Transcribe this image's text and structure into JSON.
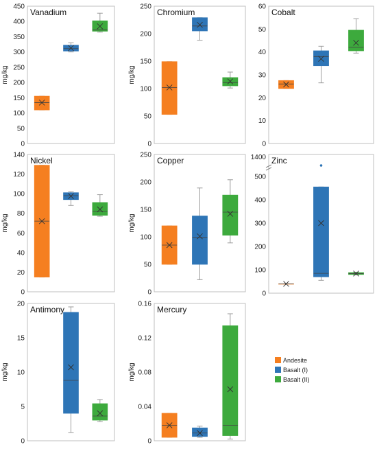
{
  "legend": [
    {
      "name": "Andesite",
      "color": "#F57F20"
    },
    {
      "name": "Basalt (I)",
      "color": "#2E75B6"
    },
    {
      "name": "Basalt (II)",
      "color": "#3DAA3D"
    }
  ],
  "chart_data": [
    {
      "type": "box",
      "title": "Vanadium",
      "ylabel": "mg/kg",
      "ylim": [
        0,
        450
      ],
      "yticks": [
        0,
        50,
        100,
        150,
        200,
        250,
        300,
        350,
        400,
        450
      ],
      "series": [
        {
          "name": "Andesite",
          "min": 110,
          "q1": 110,
          "median": 134,
          "q3": 155,
          "max": 155,
          "mean": 134
        },
        {
          "name": "Basalt (I)",
          "min": 300,
          "q1": 303,
          "median": 311,
          "q3": 322,
          "max": 330,
          "mean": 313
        },
        {
          "name": "Basalt (II)",
          "min": 365,
          "q1": 368,
          "median": 372,
          "q3": 402,
          "max": 427,
          "mean": 384
        }
      ]
    },
    {
      "type": "box",
      "title": "Chromium",
      "ylabel": "mg/kg",
      "ylim": [
        0,
        250
      ],
      "yticks": [
        0,
        50,
        100,
        150,
        200,
        250
      ],
      "series": [
        {
          "name": "Andesite",
          "min": 53,
          "q1": 53,
          "median": 102,
          "q3": 149,
          "max": 149,
          "mean": 102
        },
        {
          "name": "Basalt (I)",
          "min": 188,
          "q1": 205,
          "median": 214,
          "q3": 229,
          "max": 229,
          "mean": 216
        },
        {
          "name": "Basalt (II)",
          "min": 101,
          "q1": 105,
          "median": 111,
          "q3": 120,
          "max": 130,
          "mean": 113
        }
      ]
    },
    {
      "type": "box",
      "title": "Cobalt",
      "ylabel": "",
      "ylim": [
        0,
        60
      ],
      "yticks": [
        0,
        10,
        20,
        30,
        40,
        50,
        60
      ],
      "series": [
        {
          "name": "Andesite",
          "min": 24,
          "q1": 24,
          "median": 26,
          "q3": 27.5,
          "max": 27.5,
          "mean": 25.8
        },
        {
          "name": "Basalt (I)",
          "min": 26.5,
          "q1": 34,
          "median": 38,
          "q3": 40.5,
          "max": 42.5,
          "mean": 37
        },
        {
          "name": "Basalt (II)",
          "min": 39.5,
          "q1": 40.5,
          "median": 42,
          "q3": 49.5,
          "max": 54.5,
          "mean": 44
        }
      ]
    },
    {
      "type": "box",
      "title": "Nickel",
      "ylabel": "mg/kg",
      "ylim": [
        0,
        140
      ],
      "yticks": [
        0,
        20,
        40,
        60,
        80,
        100,
        120,
        140
      ],
      "series": [
        {
          "name": "Andesite",
          "min": 15,
          "q1": 15,
          "median": 72,
          "q3": 129,
          "max": 129,
          "mean": 72
        },
        {
          "name": "Basalt (I)",
          "min": 88,
          "q1": 94,
          "median": 98,
          "q3": 101,
          "max": 102,
          "mean": 97.5
        },
        {
          "name": "Basalt (II)",
          "min": 77,
          "q1": 78,
          "median": 82,
          "q3": 91,
          "max": 99,
          "mean": 84
        }
      ]
    },
    {
      "type": "box",
      "title": "Copper",
      "ylabel": "mg/kg",
      "ylim": [
        0,
        250
      ],
      "yticks": [
        0,
        50,
        100,
        150,
        200,
        250
      ],
      "series": [
        {
          "name": "Andesite",
          "min": 50,
          "q1": 50,
          "median": 85,
          "q3": 120,
          "max": 120,
          "mean": 85
        },
        {
          "name": "Basalt (I)",
          "min": 22,
          "q1": 50,
          "median": 99,
          "q3": 138,
          "max": 189,
          "mean": 101
        },
        {
          "name": "Basalt (II)",
          "min": 89,
          "q1": 103,
          "median": 145,
          "q3": 176,
          "max": 204,
          "mean": 142
        }
      ]
    },
    {
      "type": "box",
      "title": "Zinc",
      "ylabel": "",
      "ylim": [
        0,
        500
      ],
      "yticks": [
        0,
        100,
        200,
        300,
        400,
        500
      ],
      "axis_break_label": "1400",
      "series": [
        {
          "name": "Andesite",
          "min": 40,
          "q1": 40,
          "median": 40,
          "q3": 40,
          "max": 40,
          "mean": 40
        },
        {
          "name": "Basalt (I)",
          "min": 55,
          "q1": 70,
          "median": 85,
          "q3": 455,
          "max": 455,
          "mean": 300,
          "outliers": [
            1400
          ]
        },
        {
          "name": "Basalt (II)",
          "min": 78,
          "q1": 80,
          "median": 84,
          "q3": 88,
          "max": 90,
          "mean": 84
        }
      ]
    },
    {
      "type": "box",
      "title": "Antimony",
      "ylabel": "mg/kg",
      "ylim": [
        0,
        20
      ],
      "yticks": [
        0,
        5,
        10,
        15,
        20
      ],
      "series": [
        {
          "name": "Basalt (I)",
          "min": 1.2,
          "q1": 4,
          "median": 8.8,
          "q3": 18.7,
          "max": 19.5,
          "mean": 10.7
        },
        {
          "name": "Basalt (II)",
          "min": 2.8,
          "q1": 3,
          "median": 3.6,
          "q3": 5.4,
          "max": 6,
          "mean": 4
        }
      ]
    },
    {
      "type": "box",
      "title": "Mercury",
      "ylabel": "mg/kg",
      "ylim": [
        0,
        0.16
      ],
      "yticks": [
        0,
        0.04,
        0.08,
        0.12,
        0.16
      ],
      "series": [
        {
          "name": "Andesite",
          "min": 0.004,
          "q1": 0.004,
          "median": 0.018,
          "q3": 0.032,
          "max": 0.032,
          "mean": 0.018
        },
        {
          "name": "Basalt (I)",
          "min": 0.004,
          "q1": 0.005,
          "median": 0.009,
          "q3": 0.015,
          "max": 0.017,
          "mean": 0.009
        },
        {
          "name": "Basalt (II)",
          "min": 0.002,
          "q1": 0.006,
          "median": 0.018,
          "q3": 0.134,
          "max": 0.148,
          "mean": 0.06
        }
      ]
    }
  ]
}
